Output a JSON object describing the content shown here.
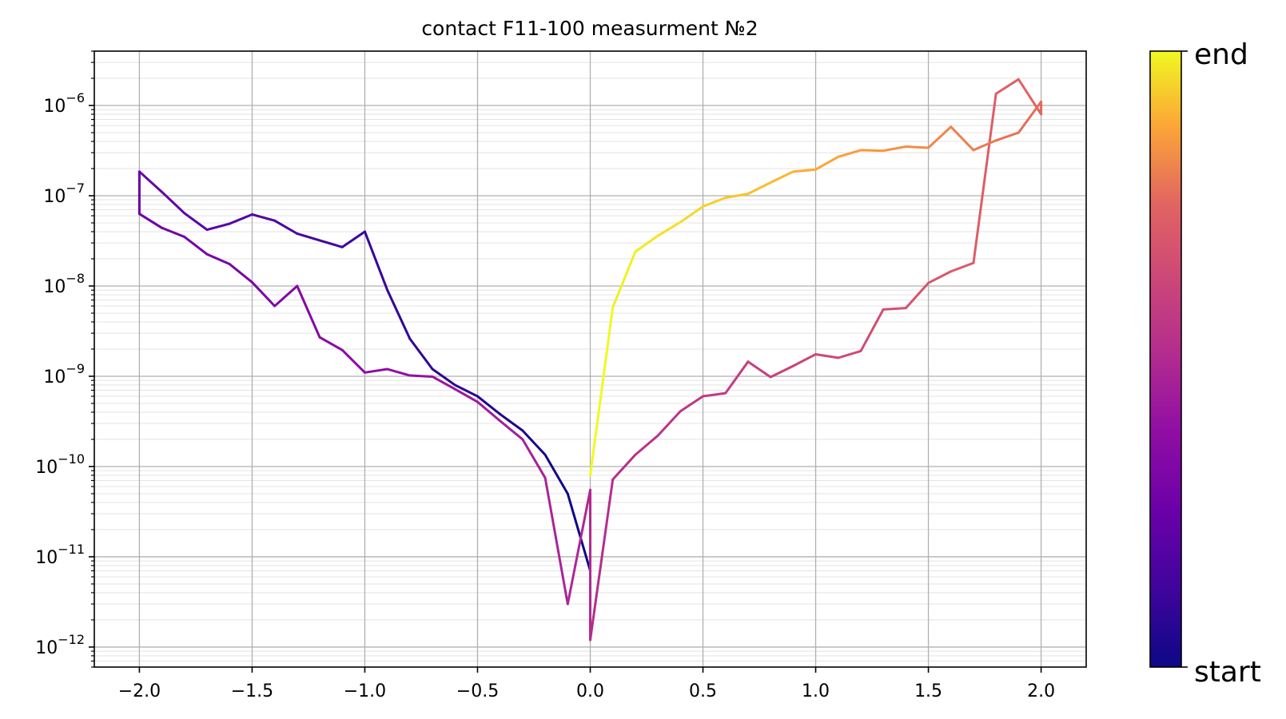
{
  "chart_data": {
    "type": "line",
    "title": "contact F11-100 measurment №2",
    "xlabel": "",
    "ylabel": "",
    "x_scale": "linear",
    "y_scale": "log",
    "xlim": [
      -2.2,
      2.2
    ],
    "ylim": [
      6e-13,
      4e-06
    ],
    "x_ticks": [
      -2.0,
      -1.5,
      -1.0,
      -0.5,
      0.0,
      0.5,
      1.0,
      1.5,
      2.0
    ],
    "x_tick_labels": [
      "−2.0",
      "−1.5",
      "−1.0",
      "−0.5",
      "0.0",
      "0.5",
      "1.0",
      "1.5",
      "2.0"
    ],
    "y_ticks": [
      {
        "base": "10",
        "exp": "−6",
        "value": 1e-06
      },
      {
        "base": "10",
        "exp": "−7",
        "value": 1e-07
      },
      {
        "base": "10",
        "exp": "−8",
        "value": 1e-08
      },
      {
        "base": "10",
        "exp": "−9",
        "value": 1e-09
      },
      {
        "base": "10",
        "exp": "−10",
        "value": 1e-10
      },
      {
        "base": "10",
        "exp": "−11",
        "value": 1e-11
      },
      {
        "base": "10",
        "exp": "−12",
        "value": 1e-12
      }
    ],
    "grid": true,
    "minor_grid": true,
    "colormap": "plasma",
    "colorbar": {
      "min_label": "start",
      "max_label": "end"
    },
    "series": [
      {
        "x": [
          0.0,
          -0.1,
          -0.2,
          -0.3,
          -0.4,
          -0.5,
          -0.6,
          -0.7,
          -0.8,
          -0.9,
          -1.0,
          -1.1,
          -1.2,
          -1.3,
          -1.4,
          -1.5,
          -1.6,
          -1.7,
          -1.8,
          -1.9,
          -2.0,
          -2.0,
          -1.9,
          -1.8,
          -1.7,
          -1.6,
          -1.5,
          -1.4,
          -1.3,
          -1.2,
          -1.1,
          -1.0,
          -0.9,
          -0.8,
          -0.7,
          -0.6,
          -0.5,
          -0.4,
          -0.3,
          -0.2,
          -0.1,
          0.0,
          0.0,
          0.1,
          0.2,
          0.3,
          0.4,
          0.5,
          0.6,
          0.7,
          0.8,
          0.9,
          1.0,
          1.1,
          1.2,
          1.3,
          1.4,
          1.5,
          1.6,
          1.7,
          1.8,
          1.9,
          2.0,
          2.0,
          1.9,
          1.8,
          1.7,
          1.6,
          1.5,
          1.4,
          1.3,
          1.2,
          1.1,
          1.0,
          0.9,
          0.8,
          0.7,
          0.6,
          0.5,
          0.4,
          0.3,
          0.2,
          0.1,
          0.0
        ],
        "y": [
          7e-12,
          5e-11,
          1.35e-10,
          2.5e-10,
          3.8e-10,
          6e-10,
          8e-10,
          1.2e-09,
          2.6e-09,
          9e-09,
          4e-08,
          2.7e-08,
          3.2e-08,
          3.8e-08,
          5.3e-08,
          6.2e-08,
          4.9e-08,
          4.2e-08,
          6.4e-08,
          1.1e-07,
          1.85e-07,
          6.3e-08,
          4.4e-08,
          3.5e-08,
          2.25e-08,
          1.75e-08,
          1.1e-08,
          6e-09,
          1e-08,
          2.7e-09,
          1.95e-09,
          1.1e-09,
          1.2e-09,
          1.02e-09,
          9.9e-10,
          7.2e-10,
          5.2e-10,
          3.2e-10,
          2e-10,
          7.5e-11,
          3e-12,
          5.5e-11,
          1.2e-12,
          7.2e-11,
          1.35e-10,
          2.2e-10,
          4.1e-10,
          6e-10,
          6.5e-10,
          1.45e-09,
          9.8e-10,
          1.3e-09,
          1.75e-09,
          1.6e-09,
          1.9e-09,
          5.5e-09,
          5.7e-09,
          1.08e-08,
          1.45e-08,
          1.8e-08,
          1.35e-06,
          1.95e-06,
          8e-07,
          1.1e-06,
          5e-07,
          4.1e-07,
          3.2e-07,
          5.8e-07,
          3.4e-07,
          3.5e-07,
          3.15e-07,
          3.2e-07,
          2.7e-07,
          1.95e-07,
          1.85e-07,
          1.4e-07,
          1.05e-07,
          9.5e-08,
          7.6e-08,
          5.1e-08,
          3.6e-08,
          2.4e-08,
          5.8e-09,
          8e-11
        ]
      }
    ]
  }
}
